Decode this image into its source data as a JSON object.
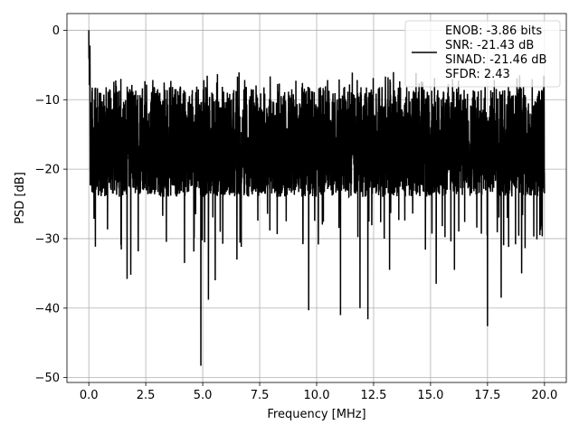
{
  "chart_data": {
    "type": "line",
    "xlabel": "Frequency [MHz]",
    "ylabel": "PSD [dB]",
    "xlim": [
      -0.96,
      20.96
    ],
    "ylim": [
      -50.7,
      2.4
    ],
    "xticks": [
      0.0,
      2.5,
      5.0,
      7.5,
      10.0,
      12.5,
      15.0,
      17.5,
      20.0
    ],
    "xtick_labels": [
      "0.0",
      "2.5",
      "5.0",
      "7.5",
      "10.0",
      "12.5",
      "15.0",
      "17.5",
      "20.0"
    ],
    "yticks": [
      0,
      -10,
      -20,
      -30,
      -40,
      -50
    ],
    "ytick_labels": [
      "0",
      "−10",
      "−20",
      "−30",
      "−40",
      "−50"
    ],
    "grid": true,
    "legend_position": "top-right",
    "legend_entries": [
      "ENOB: -3.86 bits",
      "SNR: -21.43 dB",
      "SINAD: -21.46 dB",
      "SFDR: 2.43"
    ],
    "series_color": "#000000",
    "series": [
      {
        "x_range": [
          0,
          20
        ],
        "points": 4096,
        "peak": {
          "x": 0.0,
          "y": 0.0
        },
        "typical_max": -8,
        "typical_min": -24,
        "notable_dips": [
          {
            "x": 1.68,
            "y": -35.8
          },
          {
            "x": 1.84,
            "y": -35.2
          },
          {
            "x": 4.2,
            "y": -33.5
          },
          {
            "x": 4.92,
            "y": -48.3
          },
          {
            "x": 5.25,
            "y": -38.8
          },
          {
            "x": 5.55,
            "y": -36.0
          },
          {
            "x": 6.5,
            "y": -33.0
          },
          {
            "x": 9.65,
            "y": -40.3
          },
          {
            "x": 11.05,
            "y": -41.0
          },
          {
            "x": 11.9,
            "y": -40.0
          },
          {
            "x": 12.25,
            "y": -41.6
          },
          {
            "x": 13.2,
            "y": -34.5
          },
          {
            "x": 15.25,
            "y": -36.5
          },
          {
            "x": 16.05,
            "y": -34.5
          },
          {
            "x": 17.5,
            "y": -42.6
          },
          {
            "x": 18.1,
            "y": -38.5
          },
          {
            "x": 19.0,
            "y": -35.0
          },
          {
            "x": 19.8,
            "y": -29.5
          }
        ]
      }
    ]
  }
}
